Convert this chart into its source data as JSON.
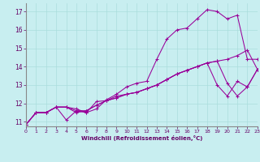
{
  "background_color": "#c8eef0",
  "grid_color": "#aadddd",
  "line_color": "#990099",
  "xlabel": "Windchill (Refroidissement éolien,°C)",
  "xlabel_color": "#660066",
  "tick_color": "#660066",
  "xmin": 0,
  "xmax": 23,
  "ymin": 10.75,
  "ymax": 17.45,
  "yticks": [
    11,
    12,
    13,
    14,
    15,
    16,
    17
  ],
  "xticks": [
    0,
    1,
    2,
    3,
    4,
    5,
    6,
    7,
    8,
    9,
    10,
    11,
    12,
    13,
    14,
    15,
    16,
    17,
    18,
    19,
    20,
    21,
    22,
    23
  ],
  "x": [
    0,
    1,
    2,
    3,
    4,
    5,
    6,
    7,
    8,
    9,
    10,
    11,
    12,
    13,
    14,
    15,
    16,
    17,
    18,
    19,
    20,
    21,
    22,
    23
  ],
  "series": [
    [
      10.85,
      11.5,
      11.5,
      11.8,
      11.8,
      11.7,
      11.5,
      11.7,
      12.2,
      12.5,
      12.9,
      13.1,
      13.2,
      14.4,
      15.5,
      16.0,
      16.1,
      16.6,
      17.1,
      17.0,
      16.6,
      16.8,
      14.4,
      14.4
    ],
    [
      10.85,
      11.5,
      11.5,
      11.8,
      11.8,
      11.5,
      11.6,
      11.9,
      12.15,
      12.3,
      12.5,
      12.6,
      12.8,
      13.0,
      13.3,
      13.6,
      13.8,
      14.0,
      14.2,
      14.3,
      13.1,
      12.4,
      12.9,
      13.85
    ],
    [
      10.85,
      11.5,
      11.5,
      11.8,
      11.1,
      11.6,
      11.5,
      12.1,
      12.15,
      12.4,
      12.5,
      12.6,
      12.8,
      13.0,
      13.3,
      13.6,
      13.8,
      14.0,
      14.2,
      13.0,
      12.4,
      13.2,
      12.9,
      13.85
    ],
    [
      10.85,
      11.5,
      11.5,
      11.8,
      11.8,
      11.6,
      11.6,
      11.9,
      12.15,
      12.3,
      12.5,
      12.6,
      12.8,
      13.0,
      13.3,
      13.6,
      13.8,
      14.0,
      14.2,
      14.3,
      14.4,
      14.6,
      14.9,
      13.85
    ]
  ]
}
